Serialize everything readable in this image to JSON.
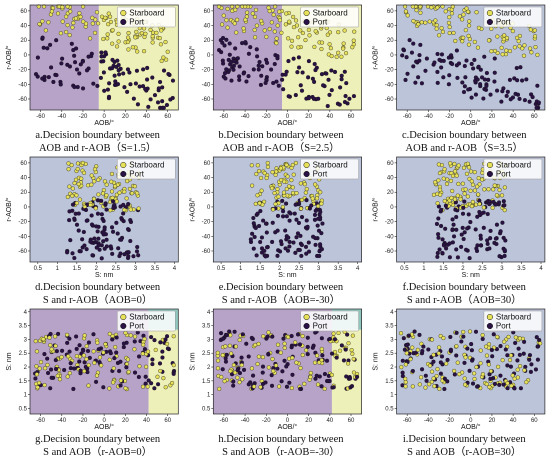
{
  "colors": {
    "purple_region": "#b7a3c7",
    "yellow_region": "#eef0b9",
    "blue_region": "#bcc4d9",
    "teal_region": "#8fc7bf",
    "starboard": "#e6e05a",
    "port": "#2a1245"
  },
  "legend": {
    "starboard": "Starboard",
    "port": "Port"
  },
  "chart_data": [
    {
      "type": "scatter",
      "id": "a",
      "caption": [
        "a.Decision boundary between",
        "AOB and r-AOB（S=1.5）"
      ],
      "xlabel": "AOB/°",
      "ylabel": "r-AOB/°",
      "xlim": [
        -70,
        70
      ],
      "ylim": [
        -75,
        68
      ],
      "xticks": [
        -60,
        -40,
        -20,
        0,
        20,
        40,
        60
      ],
      "yticks": [
        -60,
        -40,
        -20,
        0,
        20,
        40,
        60
      ],
      "regions": [
        {
          "color": "purple_region",
          "x": [
            -70,
            -5
          ]
        },
        {
          "color": "yellow_region",
          "x": [
            -5,
            70
          ]
        }
      ],
      "series": [
        {
          "name": "Starboard"
        },
        {
          "name": "Port"
        }
      ]
    },
    {
      "type": "scatter",
      "id": "b",
      "caption": [
        "b.Decision boundary between",
        "AOB and r-AOB（S=2.5）"
      ],
      "xlabel": "AOB/°",
      "ylabel": "r-AOB/°",
      "xlim": [
        -70,
        70
      ],
      "ylim": [
        -75,
        68
      ],
      "xticks": [
        -60,
        -40,
        -20,
        0,
        20,
        40,
        60
      ],
      "yticks": [
        -60,
        -40,
        -20,
        0,
        20,
        40,
        60
      ],
      "regions": [
        {
          "color": "purple_region",
          "x": [
            -70,
            -5
          ]
        },
        {
          "color": "yellow_region",
          "x": [
            -5,
            70
          ]
        }
      ],
      "series": [
        {
          "name": "Starboard"
        },
        {
          "name": "Port"
        }
      ]
    },
    {
      "type": "scatter",
      "id": "c",
      "caption": [
        "c.Decision boundary between",
        "AOB and r-AOB（S=3.5）"
      ],
      "xlabel": "AOB/°",
      "ylabel": "r-AOB/°",
      "xlim": [
        -70,
        70
      ],
      "ylim": [
        -75,
        68
      ],
      "xticks": [
        -60,
        -40,
        -20,
        0,
        20,
        40,
        60
      ],
      "yticks": [
        -60,
        -40,
        -20,
        0,
        20,
        40,
        60
      ],
      "regions": [
        {
          "color": "blue_region",
          "x": [
            -70,
            70
          ]
        }
      ],
      "series": [
        {
          "name": "Starboard"
        },
        {
          "name": "Port"
        }
      ]
    },
    {
      "type": "scatter",
      "id": "d",
      "caption": [
        "d.Decision boundary between",
        "S and r-AOB（AOB=0）"
      ],
      "xlabel": "S: nm",
      "ylabel": "r-AOB/°",
      "xlim": [
        0.3,
        4.1
      ],
      "ylim": [
        -75,
        68
      ],
      "xticks": [
        0.5,
        1.0,
        1.5,
        2.0,
        2.5,
        3.0,
        3.5,
        4.0
      ],
      "yticks": [
        -60,
        -40,
        -20,
        0,
        20,
        40,
        60
      ],
      "regions": [
        {
          "color": "blue_region",
          "x": [
            0.3,
            4.1
          ]
        }
      ],
      "series": [
        {
          "name": "Starboard"
        },
        {
          "name": "Port"
        }
      ]
    },
    {
      "type": "scatter",
      "id": "e",
      "caption": [
        "e.Decision boundary between",
        "S and r-AOB（AOB=-30）"
      ],
      "xlabel": "S: nm",
      "ylabel": "r-AOB/°",
      "xlim": [
        0.3,
        4.1
      ],
      "ylim": [
        -75,
        68
      ],
      "xticks": [
        0.5,
        1.0,
        1.5,
        2.0,
        2.5,
        3.0,
        3.5,
        4.0
      ],
      "yticks": [
        -60,
        -40,
        -20,
        0,
        20,
        40,
        60
      ],
      "regions": [
        {
          "color": "blue_region",
          "x": [
            0.3,
            4.1
          ]
        }
      ],
      "series": [
        {
          "name": "Starboard"
        },
        {
          "name": "Port"
        }
      ]
    },
    {
      "type": "scatter",
      "id": "f",
      "caption": [
        "f.Decision boundary between",
        "S and r-AOB（AOB=30）"
      ],
      "xlabel": "S: nm",
      "ylabel": "r-AOB/°",
      "xlim": [
        0.3,
        4.1
      ],
      "ylim": [
        -75,
        68
      ],
      "xticks": [
        0.5,
        1.0,
        1.5,
        2.0,
        2.5,
        3.0,
        3.5,
        4.0
      ],
      "yticks": [
        -60,
        -40,
        -20,
        0,
        20,
        40,
        60
      ],
      "regions": [
        {
          "color": "blue_region",
          "x": [
            0.3,
            4.1
          ]
        }
      ],
      "series": [
        {
          "name": "Starboard"
        },
        {
          "name": "Port"
        }
      ]
    },
    {
      "type": "scatter",
      "id": "g",
      "caption": [
        "g.Decision boundary between",
        "S and AOB（r-AOB=0）"
      ],
      "xlabel": "AOB/°",
      "ylabel": "S: nm",
      "xlim": [
        -70,
        70
      ],
      "ylim": [
        0.3,
        4.1
      ],
      "xticks": [
        -60,
        -40,
        -20,
        0,
        20,
        40,
        60
      ],
      "yticks": [
        0.5,
        1.0,
        1.5,
        2.0,
        2.5,
        3.0,
        3.5,
        4.0
      ],
      "regions": [
        {
          "color": "purple_region",
          "x": [
            -70,
            42
          ]
        },
        {
          "color": "yellow_region",
          "x": [
            42,
            70
          ],
          "y": [
            0.3,
            3.35
          ]
        },
        {
          "color": "teal_region",
          "x": [
            42,
            70
          ],
          "y": [
            3.35,
            4.1
          ]
        }
      ],
      "series": [
        {
          "name": "Starboard"
        },
        {
          "name": "Port"
        }
      ]
    },
    {
      "type": "scatter",
      "id": "h",
      "caption": [
        "h.Decision boundary between",
        "S and AOB（r-AOB=-30）"
      ],
      "xlabel": "AOB/°",
      "ylabel": "S: nm",
      "xlim": [
        -70,
        70
      ],
      "ylim": [
        0.3,
        4.1
      ],
      "xticks": [
        -60,
        -40,
        -20,
        0,
        20,
        40,
        60
      ],
      "yticks": [
        0.5,
        1.0,
        1.5,
        2.0,
        2.5,
        3.0,
        3.5,
        4.0
      ],
      "regions": [
        {
          "color": "purple_region",
          "x": [
            -70,
            42
          ]
        },
        {
          "color": "yellow_region",
          "x": [
            42,
            70
          ],
          "y": [
            0.3,
            3.35
          ]
        },
        {
          "color": "teal_region",
          "x": [
            42,
            70
          ],
          "y": [
            3.35,
            4.1
          ]
        }
      ],
      "series": [
        {
          "name": "Starboard"
        },
        {
          "name": "Port"
        }
      ]
    },
    {
      "type": "scatter",
      "id": "i",
      "caption": [
        "i.Decision boundary between",
        "S and AOB（r-AOB=30）"
      ],
      "xlabel": "AOB/°",
      "ylabel": "S: nm",
      "xlim": [
        -70,
        70
      ],
      "ylim": [
        0.3,
        4.1
      ],
      "xticks": [
        -60,
        -40,
        -20,
        0,
        20,
        40,
        60
      ],
      "yticks": [
        0.5,
        1.0,
        1.5,
        2.0,
        2.5,
        3.0,
        3.5,
        4.0
      ],
      "regions": [
        {
          "color": "blue_region",
          "x": [
            -70,
            70
          ]
        }
      ],
      "series": [
        {
          "name": "Starboard"
        },
        {
          "name": "Port"
        }
      ]
    }
  ]
}
